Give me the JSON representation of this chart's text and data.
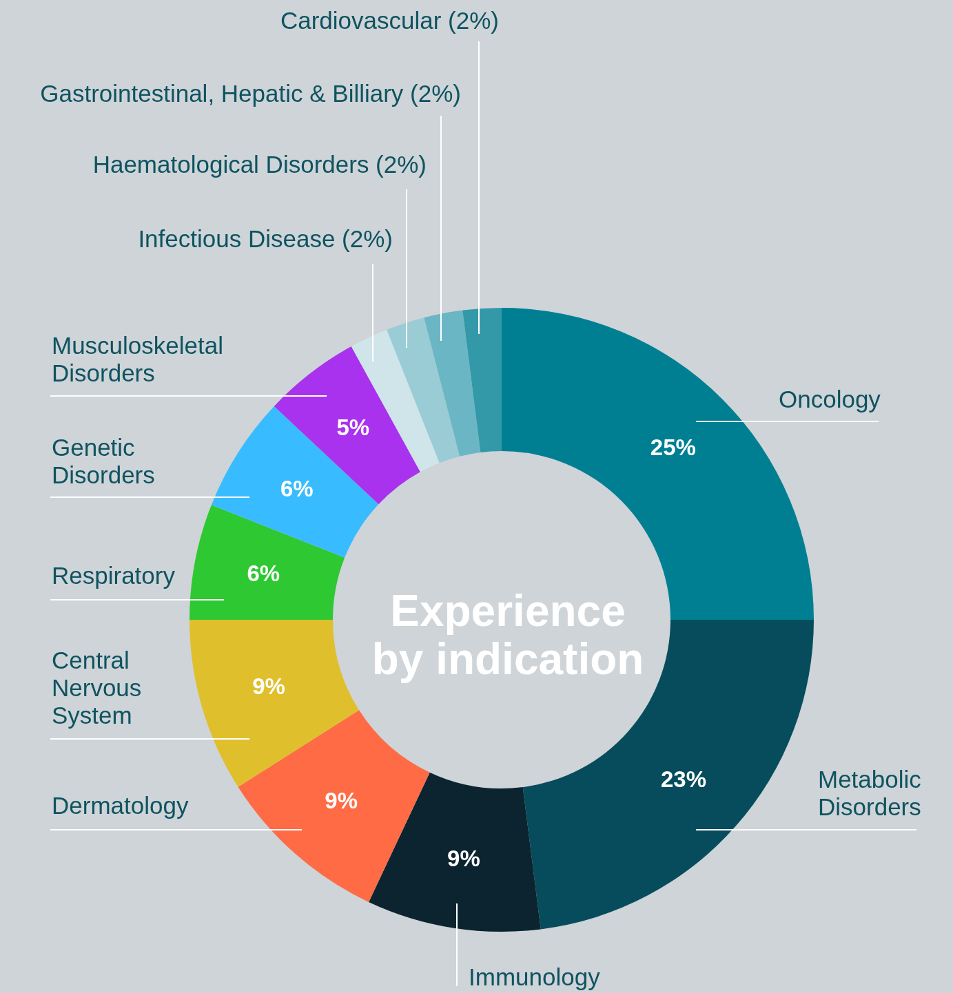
{
  "chart_data": {
    "type": "donut",
    "title": "Experience by indication",
    "categories": [
      "Oncology",
      "Metabolic Disorders",
      "Immunology",
      "Dermatology",
      "Central Nervous System",
      "Respiratory",
      "Genetic Disorders",
      "Musculoskeletal Disorders",
      "Infectious Disease (2%)",
      "Haematological Disorders (2%)",
      "Gastrointestinal, Hepatic & Billiary (2%)",
      "Cardiovascular (2%)"
    ],
    "values": [
      25,
      23,
      9,
      9,
      9,
      6,
      6,
      5,
      2,
      2,
      2,
      2
    ],
    "colors": [
      "#007f93",
      "#064c5c",
      "#0c2430",
      "#ff6b45",
      "#e0bf2d",
      "#2ec832",
      "#38bcff",
      "#a832ee",
      "#cfe5ea",
      "#9accd6",
      "#6bb6c4",
      "#3399a8"
    ],
    "value_labels": [
      "25%",
      "23%",
      "9%",
      "9%",
      "9%",
      "6%",
      "6%",
      "5%",
      null,
      null,
      null,
      null
    ]
  }
}
